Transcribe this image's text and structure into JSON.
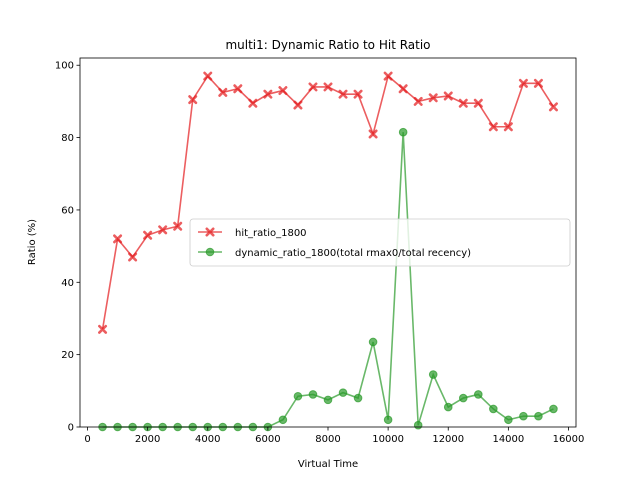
{
  "chart_data": {
    "type": "line",
    "title": "multi1: Dynamic Ratio to Hit Ratio",
    "xlabel": "Virtual Time",
    "ylabel": "Ratio (%)",
    "xlim": [
      -250,
      16250
    ],
    "ylim": [
      0,
      102
    ],
    "xticks": [
      0,
      2000,
      4000,
      6000,
      8000,
      10000,
      12000,
      14000,
      16000
    ],
    "xtick_labels": [
      "0",
      "2000",
      "4000",
      "6000",
      "8000",
      "10000",
      "12000",
      "14000",
      "16000"
    ],
    "yticks": [
      0,
      20,
      40,
      60,
      80,
      100
    ],
    "ytick_labels": [
      "0",
      "20",
      "40",
      "60",
      "80",
      "100"
    ],
    "grid": false,
    "legend_position": "center-right",
    "x": [
      500,
      1000,
      1500,
      2000,
      2500,
      3000,
      3500,
      4000,
      4500,
      5000,
      5500,
      6000,
      6500,
      7000,
      7500,
      8000,
      8500,
      9000,
      9500,
      10000,
      10500,
      11000,
      11500,
      12000,
      12500,
      13000,
      13500,
      14000,
      14500,
      15000,
      15500
    ],
    "series": [
      {
        "name": "hit_ratio_1800",
        "color": "#e41a1c",
        "marker": "x",
        "values": [
          27,
          52,
          47,
          53,
          54.5,
          55.5,
          90.5,
          97,
          92.5,
          93.5,
          89.5,
          92,
          93,
          89,
          94,
          94,
          92,
          92,
          81,
          97,
          93.5,
          90,
          91,
          91.5,
          89.5,
          89.5,
          83,
          83,
          95,
          95,
          88.5
        ]
      },
      {
        "name": "dynamic_ratio_1800(total rmax0/total recency)",
        "color": "#2a9a2a",
        "marker": "o",
        "values": [
          0,
          0,
          0,
          0,
          0,
          0,
          0,
          0,
          0,
          0,
          0,
          0,
          2,
          8.5,
          9,
          7.5,
          9.5,
          8,
          23.5,
          2,
          81.5,
          0.5,
          14.5,
          5.5,
          8,
          9,
          5,
          2,
          3,
          3,
          5
        ]
      }
    ]
  }
}
